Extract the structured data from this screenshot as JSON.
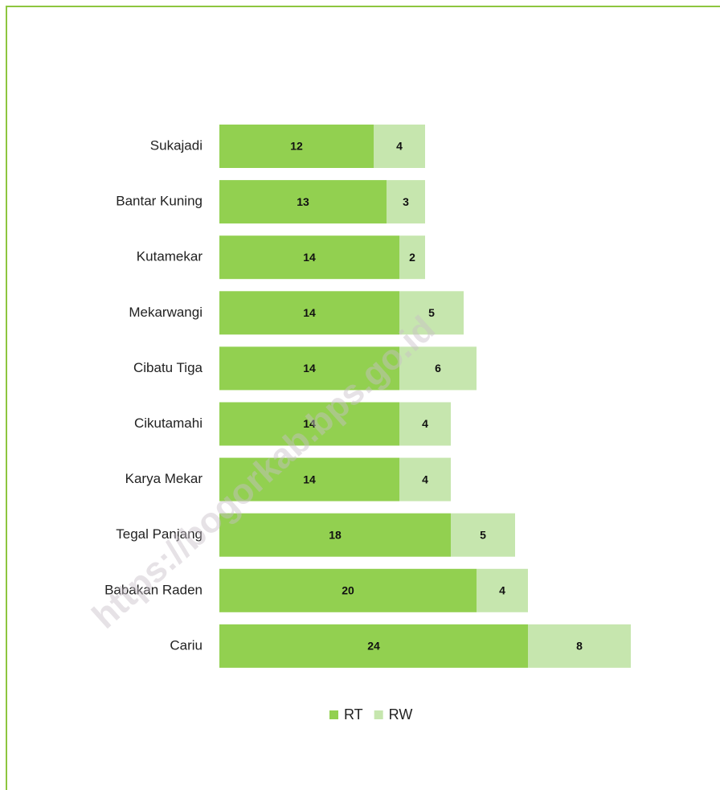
{
  "chart_data": {
    "type": "stacked-barh",
    "categories": [
      "Sukajadi",
      "Bantar Kuning",
      "Kutamekar",
      "Mekarwangi",
      "Cibatu Tiga",
      "Cikutamahi",
      "Karya Mekar",
      "Tegal Panjang",
      "Babakan Raden",
      "Cariu"
    ],
    "series": [
      {
        "name": "RT",
        "color": "#92d050",
        "values": [
          12,
          13,
          14,
          14,
          14,
          14,
          14,
          18,
          20,
          24
        ]
      },
      {
        "name": "RW",
        "color": "#c6e6ae",
        "values": [
          4,
          3,
          2,
          5,
          6,
          4,
          4,
          5,
          4,
          8
        ]
      }
    ],
    "legend": "bottom",
    "watermark": "https://bogorkab.bps.go.id"
  }
}
